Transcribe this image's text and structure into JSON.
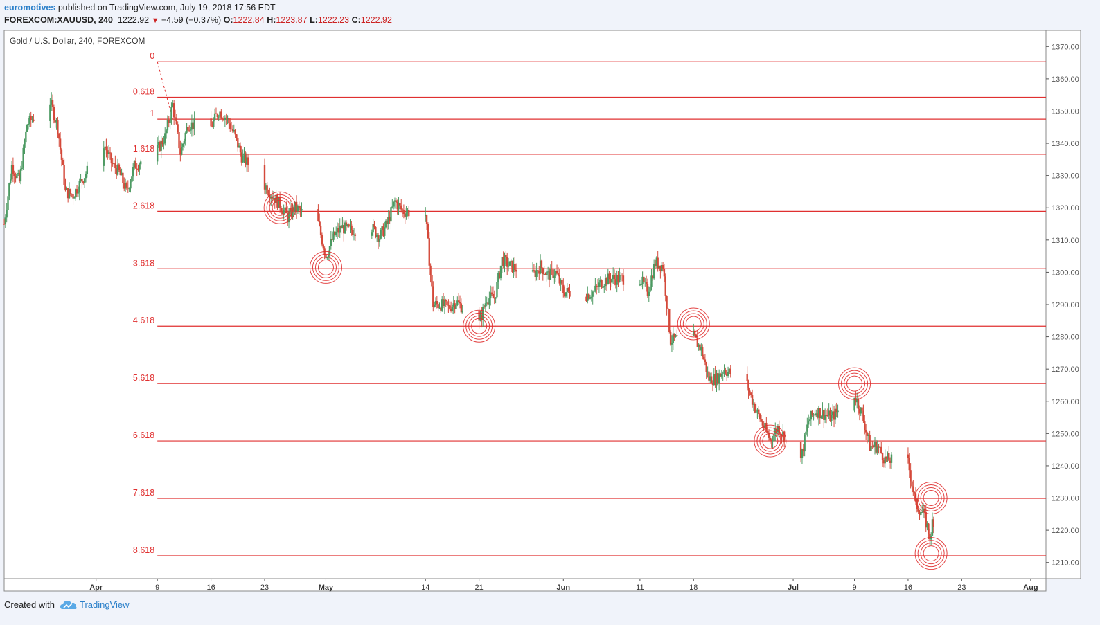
{
  "header": {
    "user": "euromotives",
    "published": "published on TradingView.com, July 19, 2018 17:56 EDT",
    "symbol": "FOREXCOM:XAUUSD, 240",
    "last": "1222.92",
    "change": "−4.59 (−0.37%)",
    "o_label": "O:",
    "o_value": "1222.84",
    "h_label": "H:",
    "h_value": "1223.87",
    "l_label": "L:",
    "l_value": "1222.23",
    "c_label": "C:",
    "c_value": "1222.92"
  },
  "footer": {
    "created": "Created with",
    "brand": "TradingView"
  },
  "colors": {
    "fib": "#e03030",
    "up": "#4c9a62",
    "down": "#d4493a",
    "axis": "#555555",
    "bg": "#ffffff"
  },
  "chart_data": {
    "type": "candlestick",
    "title": "Gold / U.S. Dollar, 240, FOREXCOM",
    "y_axis": {
      "min": 1205,
      "max": 1375,
      "ticks": [
        1210,
        1220,
        1230,
        1240,
        1250,
        1260,
        1270,
        1280,
        1290,
        1300,
        1310,
        1320,
        1330,
        1340,
        1350,
        1360,
        1370
      ],
      "position": "right"
    },
    "x_axis": {
      "start": "2018-03-20",
      "end": "2018-08-03",
      "tick_labels": [
        "Apr",
        "9",
        "16",
        "23",
        "May",
        "14",
        "21",
        "Jun",
        "11",
        "18",
        "Jul",
        "9",
        "16",
        "23",
        "Aug"
      ],
      "tick_dates": [
        "2018-04-01",
        "2018-04-09",
        "2018-04-16",
        "2018-04-23",
        "2018-05-01",
        "2018-05-14",
        "2018-05-21",
        "2018-06-01",
        "2018-06-11",
        "2018-06-18",
        "2018-07-01",
        "2018-07-09",
        "2018-07-16",
        "2018-07-23",
        "2018-08-01"
      ]
    },
    "fib_levels": [
      {
        "label": "0",
        "price": 1365.3
      },
      {
        "label": "0.618",
        "price": 1354.3
      },
      {
        "label": "1",
        "price": 1347.5
      },
      {
        "label": "1.618",
        "price": 1336.6
      },
      {
        "label": "2.618",
        "price": 1318.9
      },
      {
        "label": "3.618",
        "price": 1301.1
      },
      {
        "label": "4.618",
        "price": 1283.3
      },
      {
        "label": "5.618",
        "price": 1265.5
      },
      {
        "label": "6.618",
        "price": 1247.7
      },
      {
        "label": "7.618",
        "price": 1229.9
      },
      {
        "label": "8.618",
        "price": 1212.1
      }
    ],
    "fib_anchor": {
      "from": {
        "date": "2018-04-09",
        "price": 1365.3
      },
      "to": {
        "date": "2018-04-11",
        "price": 1347.5
      }
    },
    "markers": [
      {
        "date": "2018-04-25",
        "price": 1320.0
      },
      {
        "date": "2018-05-01",
        "price": 1301.5
      },
      {
        "date": "2018-05-21",
        "price": 1283.3
      },
      {
        "date": "2018-06-18",
        "price": 1284.0
      },
      {
        "date": "2018-06-28",
        "price": 1247.7
      },
      {
        "date": "2018-07-09",
        "price": 1265.5
      },
      {
        "date": "2018-07-19",
        "price": 1230.0
      },
      {
        "date": "2018-07-19",
        "price": 1212.8
      }
    ],
    "price_path": [
      [
        "2018-03-20",
        1315
      ],
      [
        "2018-03-21",
        1333
      ],
      [
        "2018-03-22",
        1328
      ],
      [
        "2018-03-23",
        1346
      ],
      [
        "2018-03-26",
        1353
      ],
      [
        "2018-03-27",
        1345
      ],
      [
        "2018-03-28",
        1325
      ],
      [
        "2018-03-29",
        1324
      ],
      [
        "2018-04-02",
        1340
      ],
      [
        "2018-04-03",
        1334
      ],
      [
        "2018-04-04",
        1331
      ],
      [
        "2018-04-05",
        1325
      ],
      [
        "2018-04-06",
        1333
      ],
      [
        "2018-04-09",
        1338
      ],
      [
        "2018-04-10",
        1342
      ],
      [
        "2018-04-11",
        1352
      ],
      [
        "2018-04-12",
        1337
      ],
      [
        "2018-04-13",
        1346
      ],
      [
        "2018-04-16",
        1345
      ],
      [
        "2018-04-17",
        1350
      ],
      [
        "2018-04-18",
        1348
      ],
      [
        "2018-04-19",
        1343
      ],
      [
        "2018-04-20",
        1336
      ],
      [
        "2018-04-23",
        1327
      ],
      [
        "2018-04-24",
        1324
      ],
      [
        "2018-04-25",
        1321
      ],
      [
        "2018-04-26",
        1317
      ],
      [
        "2018-04-27",
        1320
      ],
      [
        "2018-04-30",
        1315
      ],
      [
        "2018-05-01",
        1305
      ],
      [
        "2018-05-02",
        1311
      ],
      [
        "2018-05-03",
        1314
      ],
      [
        "2018-05-04",
        1313
      ],
      [
        "2018-05-07",
        1314
      ],
      [
        "2018-05-08",
        1311
      ],
      [
        "2018-05-09",
        1315
      ],
      [
        "2018-05-10",
        1322
      ],
      [
        "2018-05-11",
        1319
      ],
      [
        "2018-05-14",
        1318
      ],
      [
        "2018-05-15",
        1290
      ],
      [
        "2018-05-16",
        1290
      ],
      [
        "2018-05-17",
        1289
      ],
      [
        "2018-05-18",
        1291
      ],
      [
        "2018-05-21",
        1284
      ],
      [
        "2018-05-22",
        1292
      ],
      [
        "2018-05-23",
        1292
      ],
      [
        "2018-05-24",
        1304
      ],
      [
        "2018-05-25",
        1302
      ],
      [
        "2018-05-28",
        1299
      ],
      [
        "2018-05-29",
        1302
      ],
      [
        "2018-05-30",
        1299
      ],
      [
        "2018-05-31",
        1300
      ],
      [
        "2018-06-01",
        1294
      ],
      [
        "2018-06-04",
        1293
      ],
      [
        "2018-06-05",
        1294
      ],
      [
        "2018-06-06",
        1297
      ],
      [
        "2018-06-07",
        1298
      ],
      [
        "2018-06-08",
        1298
      ],
      [
        "2018-06-11",
        1298
      ],
      [
        "2018-06-12",
        1294
      ],
      [
        "2018-06-13",
        1303
      ],
      [
        "2018-06-14",
        1302
      ],
      [
        "2018-06-15",
        1279
      ],
      [
        "2018-06-18",
        1280
      ],
      [
        "2018-06-19",
        1276
      ],
      [
        "2018-06-20",
        1267
      ],
      [
        "2018-06-21",
        1267
      ],
      [
        "2018-06-22",
        1270
      ],
      [
        "2018-06-25",
        1265
      ],
      [
        "2018-06-26",
        1258
      ],
      [
        "2018-06-27",
        1253
      ],
      [
        "2018-06-28",
        1248
      ],
      [
        "2018-06-29",
        1252
      ],
      [
        "2018-07-02",
        1242
      ],
      [
        "2018-07-03",
        1254
      ],
      [
        "2018-07-04",
        1257
      ],
      [
        "2018-07-05",
        1256
      ],
      [
        "2018-07-06",
        1255
      ],
      [
        "2018-07-09",
        1262
      ],
      [
        "2018-07-10",
        1256
      ],
      [
        "2018-07-11",
        1246
      ],
      [
        "2018-07-12",
        1246
      ],
      [
        "2018-07-13",
        1242
      ],
      [
        "2018-07-16",
        1241
      ],
      [
        "2018-07-17",
        1228
      ],
      [
        "2018-07-18",
        1225
      ],
      [
        "2018-07-19",
        1217
      ],
      [
        "2018-07-19",
        1222.9
      ]
    ]
  }
}
